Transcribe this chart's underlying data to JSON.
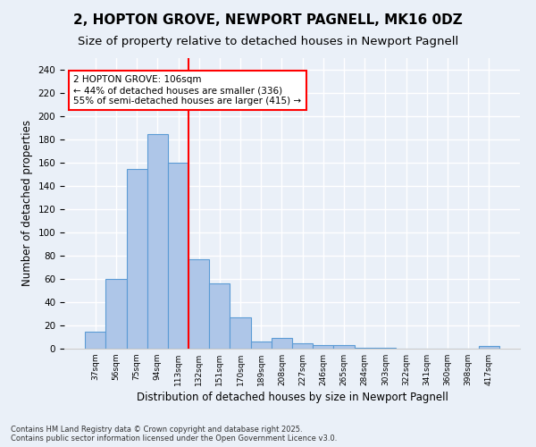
{
  "title": "2, HOPTON GROVE, NEWPORT PAGNELL, MK16 0DZ",
  "subtitle": "Size of property relative to detached houses in Newport Pagnell",
  "xlabel": "Distribution of detached houses by size in Newport Pagnell",
  "ylabel": "Number of detached properties",
  "categories": [
    "37sqm",
    "56sqm",
    "75sqm",
    "94sqm",
    "113sqm",
    "132sqm",
    "151sqm",
    "170sqm",
    "189sqm",
    "208sqm",
    "227sqm",
    "246sqm",
    "265sqm",
    "284sqm",
    "303sqm",
    "322sqm",
    "341sqm",
    "360sqm",
    "398sqm",
    "417sqm"
  ],
  "values": [
    15,
    60,
    155,
    185,
    160,
    77,
    56,
    27,
    6,
    9,
    5,
    3,
    3,
    1,
    1,
    0,
    0,
    0,
    0,
    2
  ],
  "bar_color": "#aec6e8",
  "bar_edge_color": "#5b9bd5",
  "vline_x": 4.5,
  "vline_color": "red",
  "annotation_box_text": "2 HOPTON GROVE: 106sqm\n← 44% of detached houses are smaller (336)\n55% of semi-detached houses are larger (415) →",
  "annotation_fontsize": 7.5,
  "title_fontsize": 11,
  "subtitle_fontsize": 9.5,
  "ylabel_fontsize": 8.5,
  "xlabel_fontsize": 8.5,
  "ylim": [
    0,
    250
  ],
  "yticks": [
    0,
    20,
    40,
    60,
    80,
    100,
    120,
    140,
    160,
    180,
    200,
    220,
    240
  ],
  "footer_text": "Contains HM Land Registry data © Crown copyright and database right 2025.\nContains public sector information licensed under the Open Government Licence v3.0.",
  "background_color": "#eaf0f8",
  "grid_color": "#ffffff"
}
